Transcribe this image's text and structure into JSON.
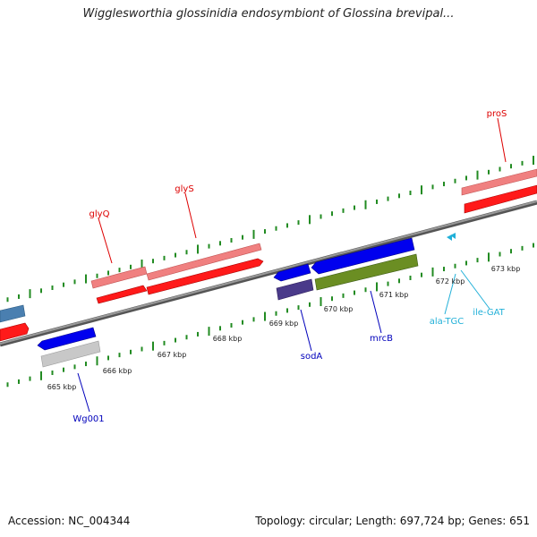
{
  "title": "Wigglesworthia glossinidia endosymbiont of Glossina brevipal...",
  "footer": {
    "accession": "Accession: NC_004344",
    "summary": "Topology: circular; Length: 697,724 bp; Genes: 651"
  },
  "colors": {
    "backbone": "#7a7a7a",
    "tick": "#228b22",
    "forward_gene": "#ff1a1a",
    "forward_gene_light": "#f08080",
    "reverse_gene": "#0000ee",
    "reverse_gene_dark": "#4a3a8a",
    "reverse_gene_light": "#c8c8c8",
    "reverse_gene_green": "#6b8e23",
    "reverse_label": "#0000bb",
    "forward_label": "#dd0000",
    "trna": "#22b0d8"
  },
  "tick_labels": [
    "665 kbp",
    "666 kbp",
    "667 kbp",
    "668 kbp",
    "669 kbp",
    "670 kbp",
    "671 kbp",
    "672 kbp",
    "673 kbp"
  ],
  "forward_labels": [
    "glyQ",
    "glyS",
    "proS"
  ],
  "reverse_labels": [
    "Wg001",
    "sodA",
    "mrcB"
  ],
  "trna_labels": [
    "ala-TGC",
    "ile-GAT"
  ]
}
